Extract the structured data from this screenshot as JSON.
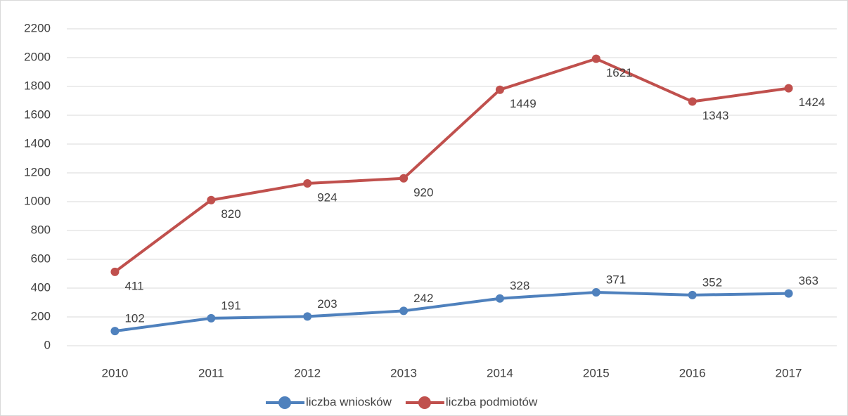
{
  "chart_data": {
    "type": "line",
    "stacked": true,
    "categories": [
      "2010",
      "2011",
      "2012",
      "2013",
      "2014",
      "2015",
      "2016",
      "2017"
    ],
    "series": [
      {
        "name": "liczba wniosków",
        "color": "#4f81bd",
        "values": [
          102,
          191,
          203,
          242,
          328,
          371,
          352,
          363
        ]
      },
      {
        "name": "liczba podmiotów",
        "color": "#c0504d",
        "values": [
          411,
          820,
          924,
          920,
          1449,
          1621,
          1343,
          1424
        ]
      }
    ],
    "ylim": [
      0,
      2200
    ],
    "yticks": [
      0,
      200,
      400,
      600,
      800,
      1000,
      1200,
      1400,
      1600,
      1800,
      2000,
      2200
    ],
    "grid": true,
    "legend": "bottom"
  }
}
